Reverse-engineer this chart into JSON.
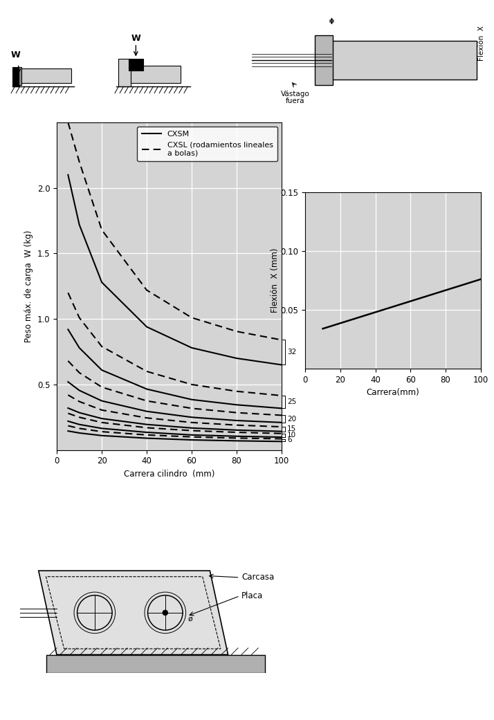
{
  "bg_color": "#d4d4d4",
  "plot1": {
    "xlabel": "Carrera cilindro  (mm)",
    "ylabel": "Peso máx. de carga  W (kg)",
    "xlim": [
      0,
      100
    ],
    "ylim": [
      0,
      2.5
    ],
    "xticks": [
      0,
      20,
      40,
      60,
      80,
      100
    ],
    "yticks": [
      0.5,
      1.0,
      1.5,
      2.0
    ],
    "legend_solid": "CXSM",
    "legend_dashed": "CXSL (rodamientos lineales\na bolas)",
    "label_sizes": [
      "6",
      "10",
      "15",
      "20",
      "25",
      "32"
    ],
    "solid_curves": {
      "6": [
        [
          5,
          0.145
        ],
        [
          10,
          0.13
        ],
        [
          20,
          0.11
        ],
        [
          40,
          0.09
        ],
        [
          60,
          0.077
        ],
        [
          80,
          0.07
        ],
        [
          100,
          0.065
        ]
      ],
      "10": [
        [
          5,
          0.22
        ],
        [
          10,
          0.195
        ],
        [
          20,
          0.165
        ],
        [
          40,
          0.135
        ],
        [
          60,
          0.115
        ],
        [
          80,
          0.105
        ],
        [
          100,
          0.098
        ]
      ],
      "15": [
        [
          5,
          0.32
        ],
        [
          10,
          0.285
        ],
        [
          20,
          0.24
        ],
        [
          40,
          0.195
        ],
        [
          60,
          0.168
        ],
        [
          80,
          0.152
        ],
        [
          100,
          0.142
        ]
      ],
      "20": [
        [
          5,
          0.52
        ],
        [
          10,
          0.455
        ],
        [
          20,
          0.375
        ],
        [
          40,
          0.295
        ],
        [
          60,
          0.25
        ],
        [
          80,
          0.225
        ],
        [
          100,
          0.21
        ]
      ],
      "25": [
        [
          5,
          0.92
        ],
        [
          10,
          0.78
        ],
        [
          20,
          0.61
        ],
        [
          40,
          0.465
        ],
        [
          60,
          0.385
        ],
        [
          80,
          0.345
        ],
        [
          100,
          0.318
        ]
      ],
      "32": [
        [
          5,
          2.1
        ],
        [
          10,
          1.72
        ],
        [
          20,
          1.28
        ],
        [
          40,
          0.94
        ],
        [
          60,
          0.78
        ],
        [
          80,
          0.7
        ],
        [
          100,
          0.65
        ]
      ]
    },
    "dashed_curves": {
      "6": [
        [
          5,
          0.185
        ],
        [
          10,
          0.165
        ],
        [
          20,
          0.14
        ],
        [
          40,
          0.115
        ],
        [
          60,
          0.1
        ],
        [
          80,
          0.091
        ],
        [
          100,
          0.085
        ]
      ],
      "10": [
        [
          5,
          0.28
        ],
        [
          10,
          0.25
        ],
        [
          20,
          0.21
        ],
        [
          40,
          0.17
        ],
        [
          60,
          0.148
        ],
        [
          80,
          0.135
        ],
        [
          100,
          0.126
        ]
      ],
      "15": [
        [
          5,
          0.42
        ],
        [
          10,
          0.37
        ],
        [
          20,
          0.305
        ],
        [
          40,
          0.245
        ],
        [
          60,
          0.21
        ],
        [
          80,
          0.19
        ],
        [
          100,
          0.177
        ]
      ],
      "20": [
        [
          5,
          0.68
        ],
        [
          10,
          0.59
        ],
        [
          20,
          0.48
        ],
        [
          40,
          0.375
        ],
        [
          60,
          0.318
        ],
        [
          80,
          0.285
        ],
        [
          100,
          0.265
        ]
      ],
      "25": [
        [
          5,
          1.2
        ],
        [
          10,
          1.01
        ],
        [
          20,
          0.79
        ],
        [
          40,
          0.6
        ],
        [
          60,
          0.5
        ],
        [
          80,
          0.448
        ],
        [
          100,
          0.415
        ]
      ],
      "32": [
        [
          5,
          2.5
        ],
        [
          10,
          2.2
        ],
        [
          20,
          1.68
        ],
        [
          40,
          1.22
        ],
        [
          60,
          1.01
        ],
        [
          80,
          0.905
        ],
        [
          100,
          0.84
        ]
      ]
    },
    "label_y_mid": {
      "6": 0.075,
      "10": 0.112,
      "15": 0.16,
      "20": 0.238,
      "25": 0.367,
      "32": 0.745
    }
  },
  "plot2": {
    "xlabel": "Carrera(mm)",
    "ylabel": "Flexión  X (mm)",
    "xlim": [
      0,
      100
    ],
    "ylim": [
      0,
      0.15
    ],
    "xticks": [
      0,
      20,
      40,
      60,
      80,
      100
    ],
    "yticks": [
      0.05,
      0.1,
      0.15
    ],
    "line_x": [
      10,
      100
    ],
    "line_y": [
      0.034,
      0.076
    ]
  }
}
